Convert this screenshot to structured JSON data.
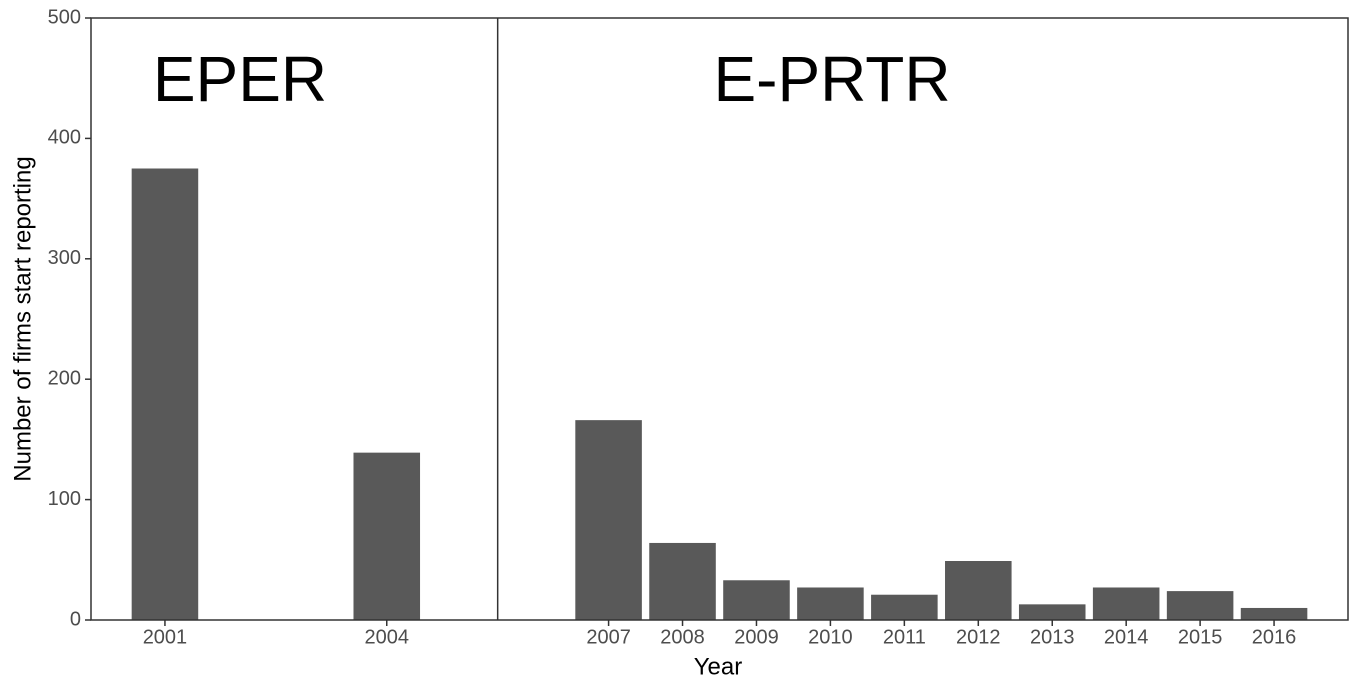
{
  "chart_data": {
    "type": "bar",
    "x": [
      2001,
      2004,
      2007,
      2008,
      2009,
      2010,
      2011,
      2012,
      2013,
      2014,
      2015,
      2016
    ],
    "values": [
      375,
      139,
      166,
      64,
      33,
      27,
      21,
      49,
      13,
      27,
      24,
      10
    ],
    "color": "#595959",
    "xlim": [
      2000,
      2017
    ],
    "xticks": [
      2001,
      2004,
      2007,
      2008,
      2009,
      2010,
      2011,
      2012,
      2013,
      2014,
      2015,
      2016
    ],
    "ylim": [
      0,
      500
    ],
    "yticks": [
      0,
      100,
      200,
      300,
      400,
      500
    ],
    "xlabel": "Year",
    "ylabel": "Number of firms start reporting",
    "vlines": [
      2005.5
    ],
    "annotations": [
      "EPER",
      "E-PRTR"
    ]
  }
}
